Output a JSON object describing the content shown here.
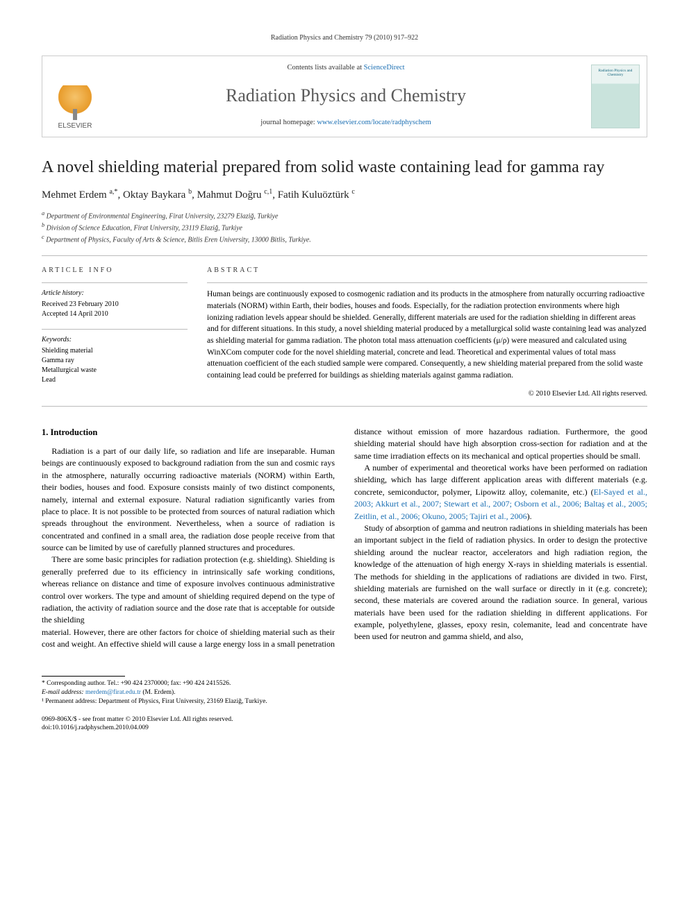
{
  "running_header": "Radiation Physics and Chemistry 79 (2010) 917–922",
  "masthead": {
    "publisher": "ELSEVIER",
    "contents_prefix": "Contents lists available at ",
    "contents_link": "ScienceDirect",
    "journal_name": "Radiation Physics and Chemistry",
    "homepage_prefix": "journal homepage: ",
    "homepage_url": "www.elsevier.com/locate/radphyschem",
    "cover_label": "Radiation Physics and Chemistry"
  },
  "article": {
    "title": "A novel shielding material prepared from solid waste containing lead for gamma ray",
    "authors_html": "Mehmet Erdem <sup>a,*</sup>, Oktay Baykara <sup>b</sup>, Mahmut Doğru <sup>c,1</sup>, Fatih Kuluöztürk <sup>c</sup>",
    "affiliations": {
      "a": "Department of Environmental Engineering, Firat University, 23279 Elaziğ, Turkiye",
      "b": "Division of Science Education, Firat University, 23119 Elaziğ, Turkiye",
      "c": "Department of Physics, Faculty of Arts & Science, Bitlis Eren University, 13000 Bitlis, Turkiye."
    }
  },
  "info": {
    "heading": "article info",
    "history_label": "Article history:",
    "received": "Received 23 February 2010",
    "accepted": "Accepted 14 April 2010",
    "keywords_label": "Keywords:",
    "keywords": [
      "Shielding material",
      "Gamma ray",
      "Metallurgical waste",
      "Lead"
    ]
  },
  "abstract": {
    "heading": "abstract",
    "text": "Human beings are continuously exposed to cosmogenic radiation and its products in the atmosphere from naturally occurring radioactive materials (NORM) within Earth, their bodies, houses and foods. Especially, for the radiation protection environments where high ionizing radiation levels appear should be shielded. Generally, different materials are used for the radiation shielding in different areas and for different situations. In this study, a novel shielding material produced by a metallurgical solid waste containing lead was analyzed as shielding material for gamma radiation. The photon total mass attenuation coefficients (μ/ρ) were measured and calculated using WinXCom computer code for the novel shielding material, concrete and lead. Theoretical and experimental values of total mass attenuation coefficient of the each studied sample were compared. Consequently, a new shielding material prepared from the solid waste containing lead could be preferred for buildings as shielding materials against gamma radiation.",
    "copyright": "© 2010 Elsevier Ltd. All rights reserved."
  },
  "body": {
    "section_heading": "1. Introduction",
    "p1": "Radiation is a part of our daily life, so radiation and life are inseparable. Human beings are continuously exposed to background radiation from the sun and cosmic rays in the atmosphere, naturally occurring radioactive materials (NORM) within Earth, their bodies, houses and food. Exposure consists mainly of two distinct components, namely, internal and external exposure. Natural radiation significantly varies from place to place. It is not possible to be protected from sources of natural radiation which spreads throughout the environment. Nevertheless, when a source of radiation is concentrated and confined in a small area, the radiation dose people receive from that source can be limited by use of carefully planned structures and procedures.",
    "p2": "There are some basic principles for radiation protection (e.g. shielding). Shielding is generally preferred due to its efficiency in intrinsically safe working conditions, whereas reliance on distance and time of exposure involves continuous administrative control over workers. The type and amount of shielding required depend on the type of radiation, the activity of radiation source and the dose rate that is acceptable for outside the shielding",
    "p3": "material. However, there are other factors for choice of shielding material such as their cost and weight. An effective shield will cause a large energy loss in a small penetration distance without emission of more hazardous radiation. Furthermore, the good shielding material should have high absorption cross-section for radiation and at the same time irradiation effects on its mechanical and optical properties should be small.",
    "p4_pre": "A number of experimental and theoretical works have been performed on radiation shielding, which has large different application areas with different materials (e.g. concrete, semiconductor, polymer, Lipowitz alloy, colemanite, etc.) (",
    "p4_refs": "El-Sayed et al., 2003; Akkurt et al., 2007; Stewart et al., 2007; Osborn et al., 2006; Baltaş et al., 2005; Zeitlin, et al., 2006; Okuno, 2005; Tajiri et al., 2006",
    "p4_post": ").",
    "p5": "Study of absorption of gamma and neutron radiations in shielding materials has been an important subject in the field of radiation physics. In order to design the protective shielding around the nuclear reactor, accelerators and high radiation region, the knowledge of the attenuation of high energy X-rays in shielding materials is essential. The methods for shielding in the applications of radiations are divided in two. First, shielding materials are furnished on the wall surface or directly in it (e.g. concrete); second, these materials are covered around the radiation source. In general, various materials have been used for the radiation shielding in different applications. For example, polyethylene, glasses, epoxy resin, colemanite, lead and concentrate have been used for neutron and gamma shield, and also,"
  },
  "footnotes": {
    "corresponding": "* Corresponding author. Tel.: +90 424 2370000; fax: +90 424 2415526.",
    "email_label": "E-mail address:",
    "email": "merdem@firat.edu.tr",
    "email_person": "(M. Erdem).",
    "perm": "¹ Permanent address: Department of Physics, Firat University, 23169 Elaziğ, Turkiye."
  },
  "doi": {
    "issn_line": "0969-806X/$ - see front matter © 2010 Elsevier Ltd. All rights reserved.",
    "doi_line": "doi:10.1016/j.radphyschem.2010.04.009"
  },
  "colors": {
    "link": "#1b6fb3",
    "rule": "#bbbbbb",
    "text": "#000000",
    "journal_title": "#5a5a5a"
  }
}
